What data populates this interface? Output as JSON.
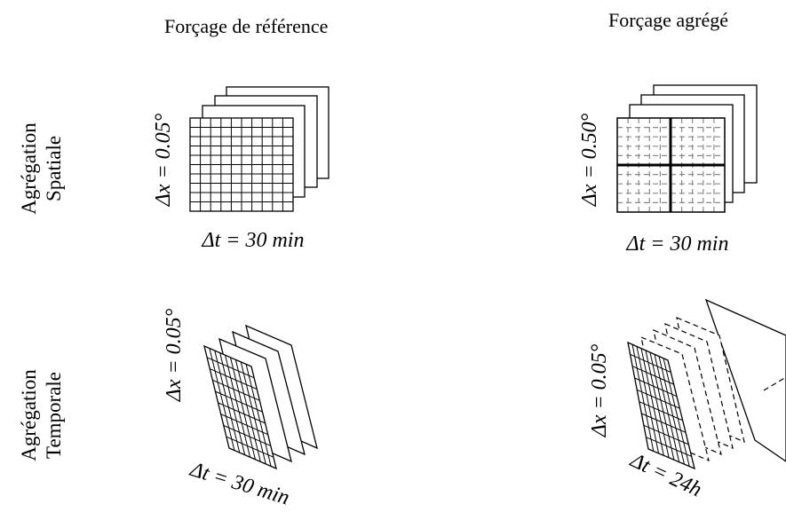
{
  "columns": {
    "reference": "Forçage de référence",
    "aggregated": "Forçage agrégé"
  },
  "rows": {
    "spatial": {
      "line1": "Agrégation",
      "line2": "Spatiale"
    },
    "temporal": {
      "line1": "Agrégation",
      "line2": "Temporale"
    }
  },
  "panels": {
    "spatial_reference": {
      "dx": "Δx = 0.05°",
      "dt": "Δt = 30 min"
    },
    "spatial_aggregated": {
      "dx": "Δx = 0.50°",
      "dt": "Δt = 30 min"
    },
    "temporal_reference": {
      "dx": "Δx = 0.05°",
      "dt": "Δt = 30 min"
    },
    "temporal_aggregated": {
      "dx": "Δx = 0.05°",
      "dt": "Δt = 24h"
    }
  },
  "colors": {
    "line": "#000000",
    "fine_grid_dashed": "#8a8a8a",
    "background": "#ffffff"
  }
}
